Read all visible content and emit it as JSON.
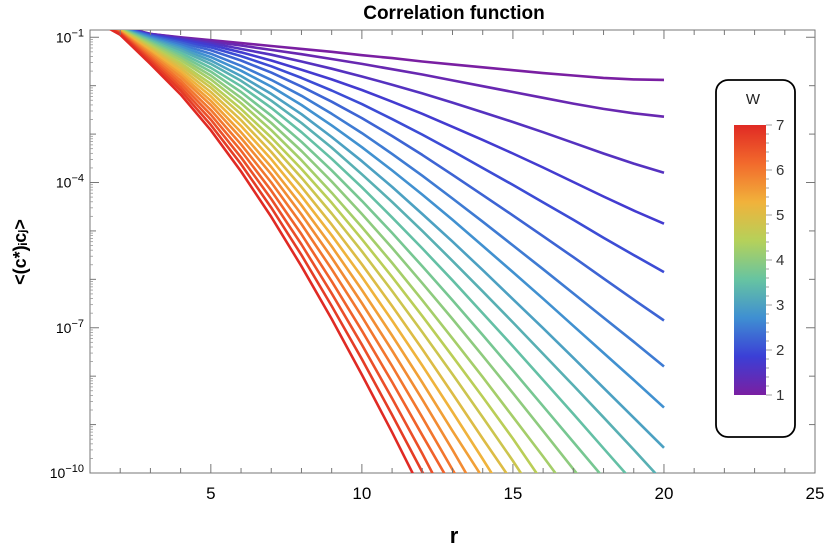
{
  "chart_data": {
    "type": "line",
    "title": "Correlation function",
    "xlabel": "r",
    "ylabel": "<(c*)ᵢcⱼ>",
    "xlim": [
      1,
      25
    ],
    "ylim_log10": [
      -10,
      -0.85
    ],
    "y_scale": "log",
    "x_ticks": [
      5,
      10,
      15,
      20,
      25
    ],
    "y_tick_labels": [
      {
        "exp": -10,
        "text": "10",
        "sup": "−10"
      },
      {
        "exp": -7,
        "text": "10",
        "sup": "−7"
      },
      {
        "exp": -4,
        "text": "10",
        "sup": "−4"
      },
      {
        "exp": -1,
        "text": "10",
        "sup": "−1"
      }
    ],
    "grid": false,
    "series_count": 25,
    "x": [
      1,
      2,
      3,
      4,
      5,
      6,
      7,
      8,
      9,
      10,
      11,
      12,
      13,
      14,
      15,
      16,
      17,
      18,
      19,
      20
    ],
    "series": [
      {
        "W": 1.0,
        "log10_y": [
          -0.6,
          -0.78,
          -0.93,
          -1.0,
          -1.06,
          -1.12,
          -1.18,
          -1.24,
          -1.3,
          -1.37,
          -1.43,
          -1.5,
          -1.56,
          -1.62,
          -1.68,
          -1.74,
          -1.79,
          -1.84,
          -1.87,
          -1.88
        ]
      },
      {
        "W": 1.25,
        "log10_y": [
          -0.6,
          -0.78,
          -0.93,
          -1.01,
          -1.09,
          -1.17,
          -1.26,
          -1.35,
          -1.45,
          -1.55,
          -1.66,
          -1.77,
          -1.89,
          -2.01,
          -2.13,
          -2.25,
          -2.37,
          -2.48,
          -2.57,
          -2.64
        ]
      },
      {
        "W": 1.5,
        "log10_y": [
          -0.6,
          -0.78,
          -0.94,
          -1.03,
          -1.12,
          -1.24,
          -1.36,
          -1.5,
          -1.65,
          -1.81,
          -1.98,
          -2.16,
          -2.35,
          -2.55,
          -2.75,
          -2.96,
          -3.18,
          -3.4,
          -3.61,
          -3.8
        ]
      },
      {
        "W": 1.75,
        "log10_y": [
          -0.6,
          -0.79,
          -0.95,
          -1.05,
          -1.16,
          -1.31,
          -1.48,
          -1.67,
          -1.87,
          -2.09,
          -2.33,
          -2.58,
          -2.85,
          -3.12,
          -3.4,
          -3.69,
          -3.99,
          -4.29,
          -4.58,
          -4.85
        ]
      },
      {
        "W": 2.0,
        "log10_y": [
          -0.6,
          -0.79,
          -0.96,
          -1.08,
          -1.21,
          -1.39,
          -1.6,
          -1.84,
          -2.1,
          -2.38,
          -2.69,
          -3.01,
          -3.35,
          -3.7,
          -4.05,
          -4.41,
          -4.77,
          -5.14,
          -5.5,
          -5.85
        ]
      },
      {
        "W": 2.25,
        "log10_y": [
          -0.6,
          -0.79,
          -0.97,
          -1.11,
          -1.27,
          -1.48,
          -1.73,
          -2.02,
          -2.33,
          -2.67,
          -3.04,
          -3.43,
          -3.84,
          -4.26,
          -4.68,
          -5.11,
          -5.54,
          -5.98,
          -6.42,
          -6.85
        ]
      },
      {
        "W": 2.5,
        "log10_y": [
          -0.6,
          -0.8,
          -0.99,
          -1.15,
          -1.34,
          -1.59,
          -1.88,
          -2.21,
          -2.58,
          -2.98,
          -3.41,
          -3.86,
          -4.33,
          -4.81,
          -5.3,
          -5.79,
          -6.29,
          -6.79,
          -7.29,
          -7.8
        ]
      },
      {
        "W": 2.75,
        "log10_y": [
          -0.6,
          -0.8,
          -1.01,
          -1.19,
          -1.41,
          -1.69,
          -2.02,
          -2.4,
          -2.82,
          -3.27,
          -3.75,
          -4.25,
          -4.77,
          -5.31,
          -5.85,
          -6.4,
          -6.96,
          -7.52,
          -8.08,
          -8.65
        ]
      },
      {
        "W": 3.0,
        "log10_y": [
          -0.6,
          -0.81,
          -1.03,
          -1.23,
          -1.48,
          -1.8,
          -2.17,
          -2.59,
          -3.06,
          -3.56,
          -4.09,
          -4.65,
          -5.22,
          -5.81,
          -6.41,
          -7.01,
          -7.62,
          -8.24,
          -8.86,
          -9.48
        ]
      },
      {
        "W": 3.25,
        "log10_y": [
          -0.6,
          -0.81,
          -1.05,
          -1.27,
          -1.55,
          -1.9,
          -2.31,
          -2.77,
          -3.28,
          -3.83,
          -4.4,
          -5.0,
          -5.62,
          -6.25,
          -6.89,
          -7.54,
          -8.19,
          -8.85,
          -9.52,
          -10.2
        ]
      },
      {
        "W": 3.5,
        "log10_y": [
          -0.6,
          -0.82,
          -1.07,
          -1.32,
          -1.63,
          -2.01,
          -2.46,
          -2.96,
          -3.51,
          -4.1,
          -4.72,
          -5.36,
          -6.02,
          -6.7,
          -7.38,
          -8.08,
          -8.78,
          -9.49,
          -10.2
        ]
      },
      {
        "W": 3.75,
        "log10_y": [
          -0.6,
          -0.82,
          -1.1,
          -1.37,
          -1.71,
          -2.13,
          -2.62,
          -3.16,
          -3.75,
          -4.38,
          -5.04,
          -5.73,
          -6.43,
          -7.15,
          -7.88,
          -8.62,
          -9.36,
          -10.1
        ]
      },
      {
        "W": 4.0,
        "log10_y": [
          -0.6,
          -0.83,
          -1.12,
          -1.42,
          -1.79,
          -2.25,
          -2.77,
          -3.35,
          -3.98,
          -4.65,
          -5.35,
          -6.08,
          -6.82,
          -7.58,
          -8.35,
          -9.13,
          -9.92,
          -10.7
        ]
      },
      {
        "W": 4.25,
        "log10_y": [
          -0.6,
          -0.84,
          -1.15,
          -1.47,
          -1.87,
          -2.36,
          -2.92,
          -3.54,
          -4.21,
          -4.92,
          -5.66,
          -6.43,
          -7.22,
          -8.02,
          -8.84,
          -9.66,
          -10.5
        ]
      },
      {
        "W": 4.5,
        "log10_y": [
          -0.6,
          -0.84,
          -1.18,
          -1.53,
          -1.96,
          -2.48,
          -3.07,
          -3.72,
          -4.42,
          -5.17,
          -5.95,
          -6.76,
          -7.59,
          -8.43,
          -9.29,
          -10.2
        ]
      },
      {
        "W": 4.75,
        "log10_y": [
          -0.6,
          -0.85,
          -1.21,
          -1.58,
          -2.04,
          -2.59,
          -3.21,
          -3.9,
          -4.64,
          -5.42,
          -6.24,
          -7.09,
          -7.96,
          -8.85,
          -9.75,
          -10.7
        ]
      },
      {
        "W": 5.0,
        "log10_y": [
          -0.6,
          -0.86,
          -1.24,
          -1.64,
          -2.13,
          -2.71,
          -3.37,
          -4.09,
          -4.87,
          -5.69,
          -6.55,
          -7.44,
          -8.36,
          -9.29,
          -10.2
        ]
      },
      {
        "W": 5.25,
        "log10_y": [
          -0.6,
          -0.87,
          -1.27,
          -1.7,
          -2.22,
          -2.83,
          -3.52,
          -4.28,
          -5.09,
          -5.95,
          -6.85,
          -7.78,
          -8.74,
          -9.71,
          -10.7
        ]
      },
      {
        "W": 5.5,
        "log10_y": [
          -0.6,
          -0.88,
          -1.31,
          -1.76,
          -2.31,
          -2.96,
          -3.68,
          -4.47,
          -5.32,
          -6.22,
          -7.16,
          -8.13,
          -9.13,
          -10.1
        ]
      },
      {
        "W": 5.75,
        "log10_y": [
          -0.6,
          -0.89,
          -1.34,
          -1.82,
          -2.4,
          -3.08,
          -3.83,
          -4.66,
          -5.55,
          -6.49,
          -7.47,
          -8.48,
          -9.52,
          -10.6
        ]
      },
      {
        "W": 6.0,
        "log10_y": [
          -0.6,
          -0.9,
          -1.38,
          -1.89,
          -2.5,
          -3.21,
          -4.0,
          -4.86,
          -5.79,
          -6.77,
          -7.79,
          -8.85,
          -9.93,
          -11.0
        ]
      },
      {
        "W": 6.25,
        "log10_y": [
          -0.6,
          -0.91,
          -1.42,
          -1.96,
          -2.6,
          -3.34,
          -4.17,
          -5.07,
          -6.04,
          -7.06,
          -8.12,
          -9.22,
          -10.3
        ]
      },
      {
        "W": 6.5,
        "log10_y": [
          -0.6,
          -0.92,
          -1.46,
          -2.03,
          -2.7,
          -3.48,
          -4.34,
          -5.28,
          -6.29,
          -7.35,
          -8.46,
          -9.6,
          -10.8
        ]
      },
      {
        "W": 6.75,
        "log10_y": [
          -0.6,
          -0.93,
          -1.5,
          -2.1,
          -2.81,
          -3.62,
          -4.52,
          -5.5,
          -6.55,
          -7.65,
          -8.8,
          -9.98,
          -11.2
        ]
      },
      {
        "W": 7.0,
        "log10_y": [
          -0.6,
          -0.95,
          -1.55,
          -2.18,
          -2.92,
          -3.77,
          -4.71,
          -5.73,
          -6.82,
          -7.97,
          -9.16,
          -10.4
        ]
      }
    ],
    "colorbar": {
      "title": "W",
      "min": 1,
      "max": 7,
      "major_ticks": [
        1,
        2,
        3,
        4,
        5,
        6,
        7
      ],
      "placement": "right, inside plot",
      "gradient_colors": [
        "#7a1fa2",
        "#3b3fd6",
        "#3f8fd2",
        "#67c4a1",
        "#b5d15a",
        "#f1b23b",
        "#f26a2c",
        "#e02a24"
      ]
    }
  }
}
